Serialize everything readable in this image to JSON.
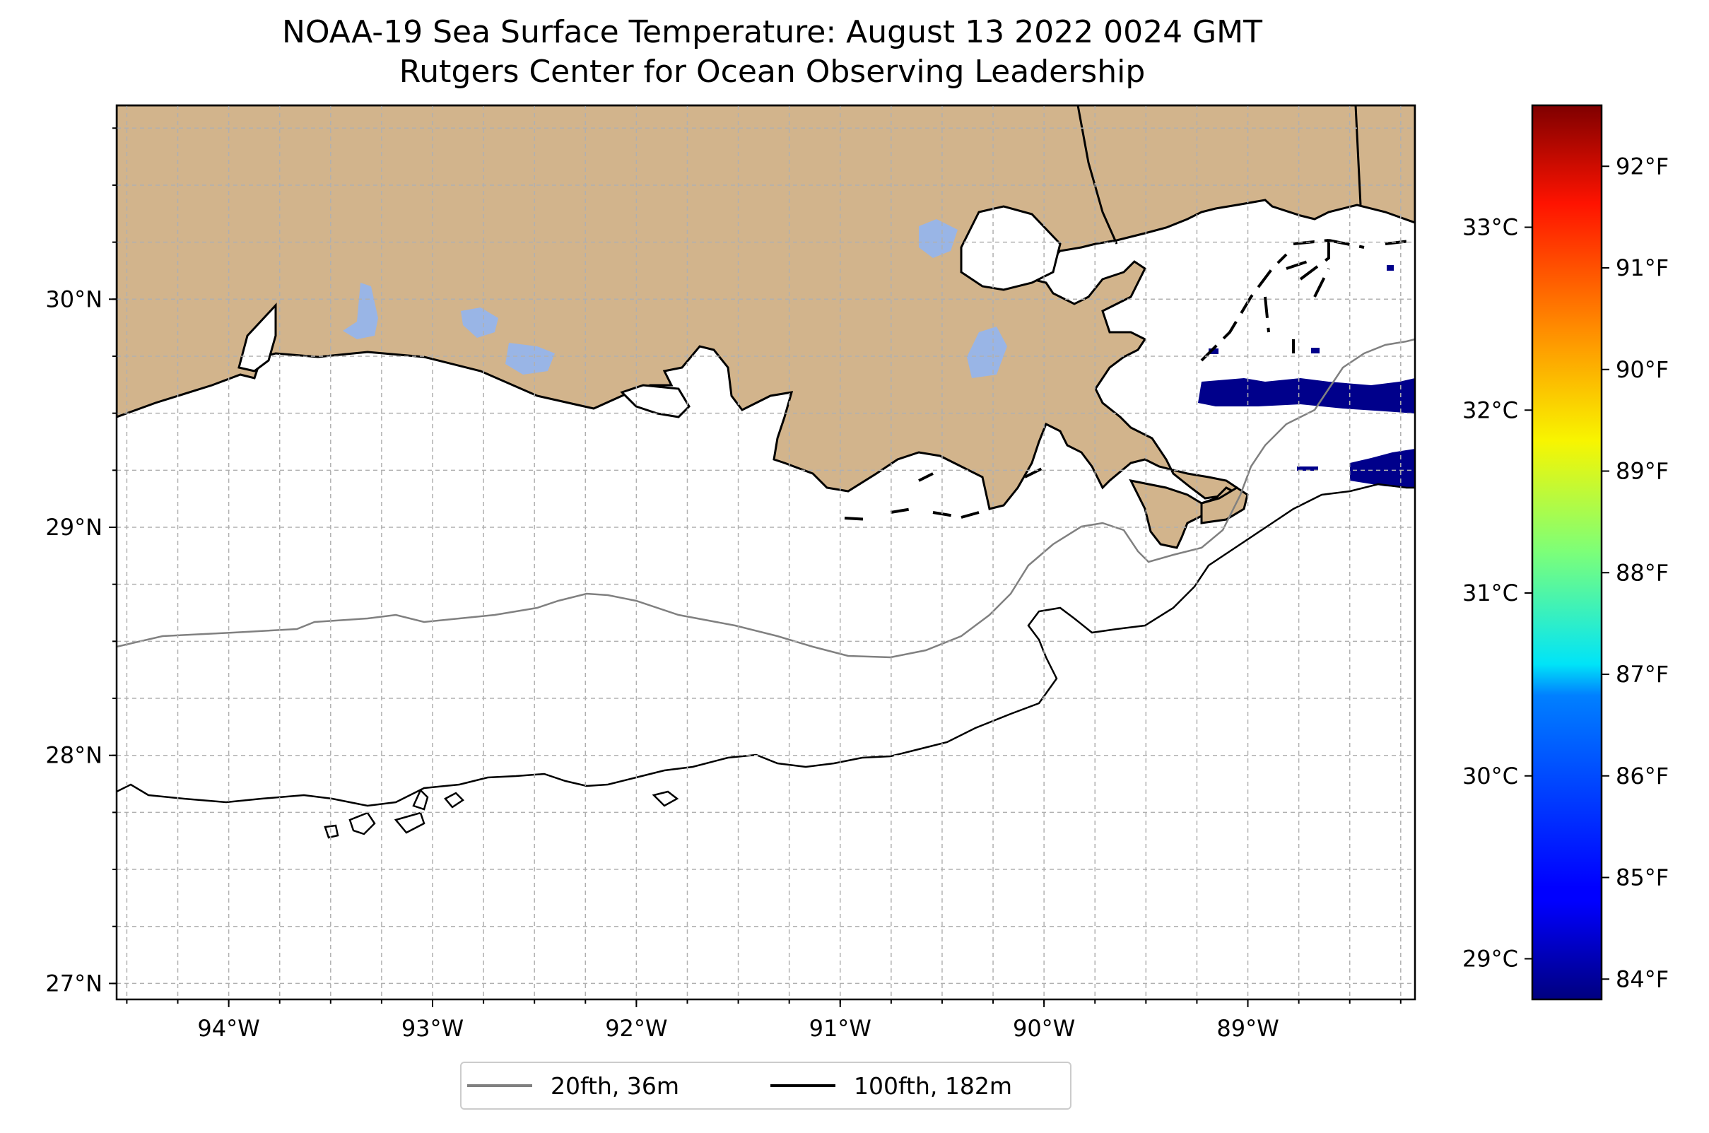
{
  "title": "NOAA-19 Sea Surface Temperature: August 13 2022 0024 GMT",
  "subtitle": "Rutgers Center for Ocean Observing Leadership",
  "map": {
    "lon_range": [
      -94.55,
      -88.18
    ],
    "lat_range": [
      26.93,
      30.85
    ],
    "lat_ticks": [
      {
        "value": 30,
        "label": "30°N"
      },
      {
        "value": 29,
        "label": "29°N"
      },
      {
        "value": 28,
        "label": "28°N"
      },
      {
        "value": 27,
        "label": "27°N"
      }
    ],
    "lon_ticks": [
      {
        "value": -94,
        "label": "94°W"
      },
      {
        "value": -93,
        "label": "93°W"
      },
      {
        "value": -92,
        "label": "92°W"
      },
      {
        "value": -91,
        "label": "91°W"
      },
      {
        "value": -90,
        "label": "90°W"
      },
      {
        "value": -89,
        "label": "89°W"
      }
    ],
    "grid": true,
    "colors": {
      "land": "#d2b48c",
      "inland_water": "#99b5e6",
      "ocean": "#ffffff",
      "contour_20fth": "#808080",
      "contour_100fth": "#000000",
      "sst_cold": "#00008b"
    }
  },
  "colorbar": {
    "colormap": "jet",
    "celsius_ticks": [
      {
        "value": 29,
        "label": "29°C"
      },
      {
        "value": 30,
        "label": "30°C"
      },
      {
        "value": 31,
        "label": "31°C"
      },
      {
        "value": 32,
        "label": "32°C"
      },
      {
        "value": 33,
        "label": "33°C"
      }
    ],
    "fahrenheit_ticks": [
      {
        "value": 84,
        "label": "84°F"
      },
      {
        "value": 85,
        "label": "85°F"
      },
      {
        "value": 86,
        "label": "86°F"
      },
      {
        "value": 87,
        "label": "87°F"
      },
      {
        "value": 88,
        "label": "88°F"
      },
      {
        "value": 89,
        "label": "89°F"
      },
      {
        "value": 90,
        "label": "90°F"
      },
      {
        "value": 91,
        "label": "91°F"
      },
      {
        "value": 92,
        "label": "92°F"
      }
    ],
    "range_f": [
      83.8,
      92.6
    ]
  },
  "legend": {
    "items": [
      {
        "label": "20fth, 36m",
        "color": "#808080"
      },
      {
        "label": "100fth, 182m",
        "color": "#000000"
      }
    ]
  }
}
